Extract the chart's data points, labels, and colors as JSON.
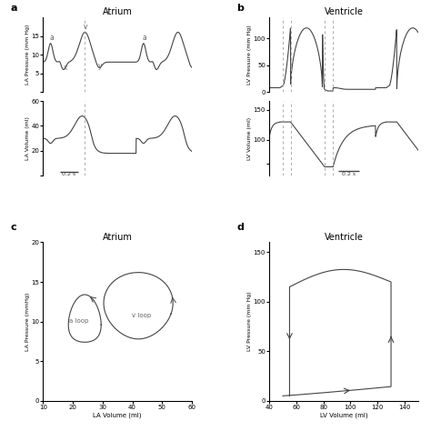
{
  "fig_width": 4.74,
  "fig_height": 4.74,
  "dpi": 100,
  "bg_color": "#ffffff",
  "line_color": "#444444",
  "dashed_color": "#aaaaaa",
  "panel_a_title": "Atrium",
  "panel_b_title": "Ventricle",
  "panel_c_title": "Atrium",
  "panel_d_title": "Ventricle",
  "label_color": "#666666"
}
